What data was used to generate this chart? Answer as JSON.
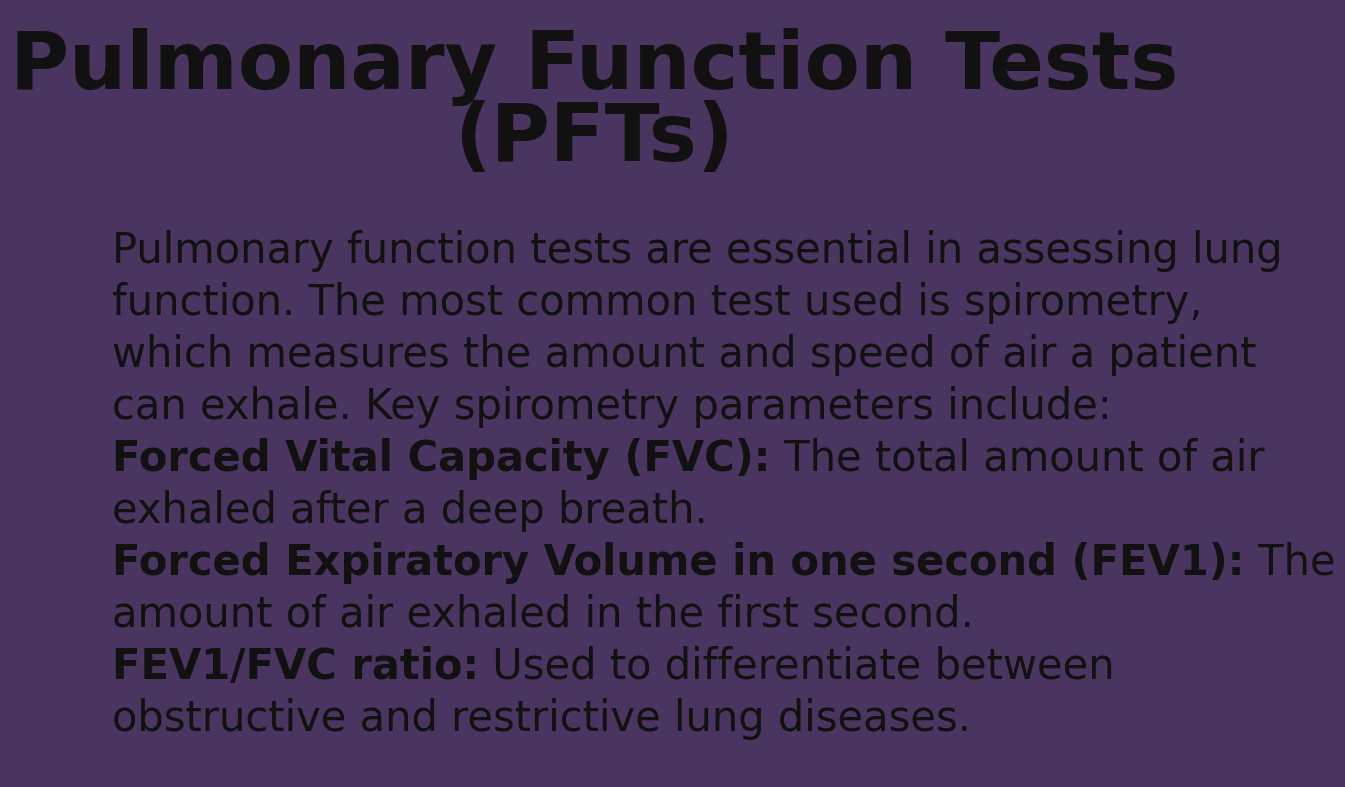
{
  "background_color": "#4a3560",
  "title_line1": "Pulmonary Function Tests",
  "title_line2": "(PFTs)",
  "title_color": "#111111",
  "title_fontsize": 58,
  "body_fontsize": 30,
  "body_color": "#111111",
  "intro_text": "Pulmonary function tests are essential in assessing lung\nfunction. The most common test used is spirometry,\nwhich measures the amount and speed of air a patient\ncan exhale. Key spirometry parameters include:",
  "fvc_bold": "Forced Vital Capacity (FVC):",
  "fvc_normal": " The total amount of air\nexhaled after a deep breath.",
  "fev1_bold": "Forced Expiratory Volume in one second (FEV1):",
  "fev1_normal": " The\namount of air exhaled in the first second.",
  "ratio_bold": "FEV1/FVC ratio:",
  "ratio_normal": " Used to differentiate between\nobstructive and restrictive lung diseases."
}
